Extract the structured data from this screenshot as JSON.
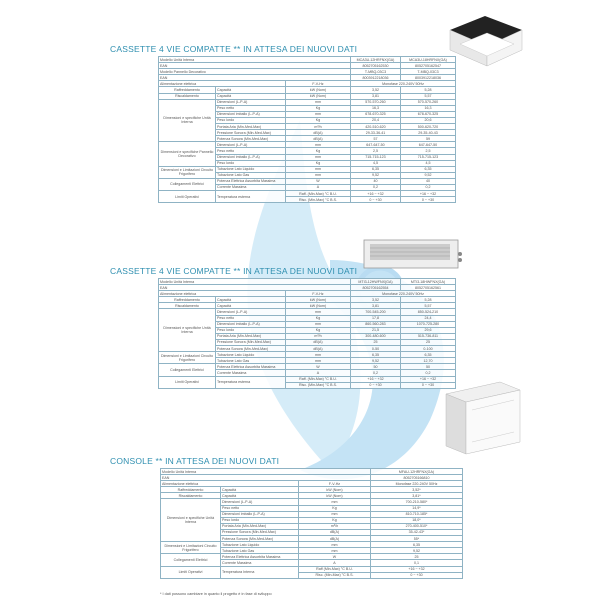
{
  "colors": {
    "title": "#2f8fb0",
    "watermark": "#cfe9f7",
    "border": "#8fb3c4"
  },
  "sections": [
    {
      "title": "CASSETTE 4 VIE COMPATTE   ** IN ATTESA DEI NUOVI DATI",
      "image": "cassette-unit-image",
      "rows": [
        [
          {
            "t": "Modello Unità Interna",
            "cs": 3,
            "l": 1
          },
          {
            "t": "MCA3U-12HRFNX(GA)"
          },
          {
            "t": "MCA3U-18HRFNX(GA)"
          }
        ],
        [
          {
            "t": "EAN",
            "cs": 3,
            "l": 1
          },
          {
            "t": "8052705162530"
          },
          {
            "t": "8052705162547"
          }
        ],
        [
          {
            "t": "Modello Pannello Decorativo",
            "cs": 3,
            "l": 1
          },
          {
            "t": "T-MBQ-03C3"
          },
          {
            "t": "T-MBQ-03C3"
          }
        ],
        [
          {
            "t": "EAN",
            "cs": 3,
            "l": 1
          },
          {
            "t": "8003912218036"
          },
          {
            "t": "8003912218036"
          }
        ],
        [
          {
            "t": "Alimentazione elettrica",
            "cs": 2,
            "l": 1
          },
          {
            "t": "F-V-Hz"
          },
          {
            "t": "Monofase 220-240V 50Hz",
            "cs": 2
          }
        ],
        [
          {
            "t": "Raffreddamento"
          },
          {
            "t": "Capacità",
            "l": 1
          },
          {
            "t": "kW (Nom)"
          },
          {
            "t": "3,52"
          },
          {
            "t": "5,28"
          }
        ],
        [
          {
            "t": "Riscaldamento"
          },
          {
            "t": "Capacità",
            "l": 1
          },
          {
            "t": "kW (Nom)"
          },
          {
            "t": "3,81"
          },
          {
            "t": "5,57"
          }
        ],
        [
          {
            "t": "Dimensioni e specifiche Unità Interna",
            "rs": 8,
            "w": 1
          },
          {
            "t": "Dimensioni (L-P-A)",
            "l": 1
          },
          {
            "t": "mm"
          },
          {
            "t": "570-570-260"
          },
          {
            "t": "570-570-260"
          }
        ],
        [
          {
            "t": "Peso netto",
            "l": 1
          },
          {
            "t": "Kg"
          },
          {
            "t": "16,3"
          },
          {
            "t": "16,3"
          }
        ],
        [
          {
            "t": "Dimensioni imballo (L-P-A)",
            "l": 1
          },
          {
            "t": "mm"
          },
          {
            "t": "678-670-325"
          },
          {
            "t": "678-670-325"
          }
        ],
        [
          {
            "t": "Peso lordo",
            "l": 1
          },
          {
            "t": "Kg"
          },
          {
            "t": "20,4"
          },
          {
            "t": "20,6"
          }
        ],
        [
          {
            "t": "Portata Aria (Min-Med-Max)",
            "l": 1
          },
          {
            "t": "m³/h"
          },
          {
            "t": "420-510-620"
          },
          {
            "t": "500-620-720"
          }
        ],
        [
          {
            "t": "Pressione Sonora (Min-Med-Max)",
            "l": 1,
            "w": 1,
            "rs": 2
          },
          {
            "t": "dB(A)",
            "rs": 2
          },
          {
            "t": "29-33-36-41",
            "rs": 2
          },
          {
            "t": "29-35-40-43",
            "rs": 2
          }
        ],
        [],
        [
          {
            "t": "Potenza Sonora (Min-Med-Max)",
            "l": 1,
            "w": 1
          },
          {
            "t": "dB(A)"
          },
          {
            "t": "57"
          },
          {
            "t": "59"
          }
        ],
        [
          {
            "t": "Dimensioni e specifiche Pannello Decorativo",
            "rs": 4,
            "w": 1
          },
          {
            "t": "Dimensioni (L-P-A)",
            "l": 1
          },
          {
            "t": "mm"
          },
          {
            "t": "647-647-50"
          },
          {
            "t": "647-647-50"
          }
        ],
        [
          {
            "t": "Peso netto",
            "l": 1
          },
          {
            "t": "Kg"
          },
          {
            "t": "2,5"
          },
          {
            "t": "2,5"
          }
        ],
        [
          {
            "t": "Dimensioni imballo (L-P-A)",
            "l": 1
          },
          {
            "t": "mm"
          },
          {
            "t": "715-715-123"
          },
          {
            "t": "715-715-123"
          }
        ],
        [
          {
            "t": "Peso lordo",
            "l": 1
          },
          {
            "t": "Kg"
          },
          {
            "t": "4,5"
          },
          {
            "t": "4,5"
          }
        ],
        [
          {
            "t": "Dimensioni e Limitazioni Circuito Frigorifero",
            "rs": 2,
            "w": 1
          },
          {
            "t": "Tubazione Lato Liquido",
            "l": 1
          },
          {
            "t": "mm"
          },
          {
            "t": "6,35"
          },
          {
            "t": "6,35"
          }
        ],
        [
          {
            "t": "Tubazione Lato Gas",
            "l": 1
          },
          {
            "t": "mm"
          },
          {
            "t": "9,52"
          },
          {
            "t": "9,52"
          }
        ],
        [
          {
            "t": "Collegamenti Elettrici",
            "rs": 2
          },
          {
            "t": "Potenza Elettrica Assorbita Massima",
            "l": 1
          },
          {
            "t": "W"
          },
          {
            "t": "40"
          },
          {
            "t": "40"
          }
        ],
        [
          {
            "t": "Corrente Massima",
            "l": 1
          },
          {
            "t": "A"
          },
          {
            "t": "0,2"
          },
          {
            "t": "0,2"
          }
        ],
        [
          {
            "t": "Limiti Operativi",
            "rs": 2
          },
          {
            "t": "Temperatura esterna",
            "rs": 2,
            "l": 1
          },
          {
            "t": "Raff. (Min-Max) °C B.U."
          },
          {
            "t": "+16 ~ +32"
          },
          {
            "t": "+16 ~ +32"
          }
        ],
        [
          {
            "t": "Risc. (Min-Max) °C B.S."
          },
          {
            "t": "0 ~ +30"
          },
          {
            "t": "0 ~ +30"
          }
        ]
      ]
    },
    {
      "title": "CASSETTE 4 VIE COMPATTE   ** IN ATTESA DEI NUOVI DATI",
      "image": "duct-unit-image",
      "rows": [
        [
          {
            "t": "Modello Unità Interna",
            "cs": 3,
            "l": 1
          },
          {
            "t": "MTI3-12HWFNX(GA)"
          },
          {
            "t": "MTI3-18HWFNX(GA)"
          }
        ],
        [
          {
            "t": "EAN",
            "cs": 3,
            "l": 1
          },
          {
            "t": "8052705162554"
          },
          {
            "t": "8052705162561"
          }
        ],
        [
          {
            "t": "Alimentazione elettrica",
            "cs": 2,
            "l": 1
          },
          {
            "t": "F-V-Hz"
          },
          {
            "t": "Monofase 220-240V 50Hz",
            "cs": 2
          }
        ],
        [
          {
            "t": "Raffreddamento"
          },
          {
            "t": "Capacità",
            "l": 1
          },
          {
            "t": "kW (Nom)"
          },
          {
            "t": "3,52"
          },
          {
            "t": "5,28"
          }
        ],
        [
          {
            "t": "Riscaldamento"
          },
          {
            "t": "Capacità",
            "l": 1
          },
          {
            "t": "kW (Nom)"
          },
          {
            "t": "3,81"
          },
          {
            "t": "5,57"
          }
        ],
        [
          {
            "t": "Dimensioni e specifiche Unità Interna",
            "rs": 9,
            "w": 1
          },
          {
            "t": "Dimensioni (L-P-A)",
            "l": 1
          },
          {
            "t": "mm"
          },
          {
            "t": "700-545-200"
          },
          {
            "t": "850-524-210"
          }
        ],
        [
          {
            "t": "Peso netto",
            "l": 1
          },
          {
            "t": "Kg"
          },
          {
            "t": "17,8"
          },
          {
            "t": "24,4"
          }
        ],
        [
          {
            "t": "Dimensioni imballo (L-P-A)",
            "l": 1
          },
          {
            "t": "mm"
          },
          {
            "t": "860-560-283"
          },
          {
            "t": "1070-725-280"
          }
        ],
        [
          {
            "t": "Peso lordo",
            "l": 1
          },
          {
            "t": "Kg"
          },
          {
            "t": "21,5"
          },
          {
            "t": "29,6"
          }
        ],
        [
          {
            "t": "Portata Aria (Min-Med-Max)",
            "l": 1
          },
          {
            "t": "m³/h"
          },
          {
            "t": "300-480-600"
          },
          {
            "t": "515-736-811"
          }
        ],
        [
          {
            "t": "Pressione Sonora (Min-Med-Max)",
            "l": 1,
            "w": 1,
            "rs": 2
          },
          {
            "t": "dB(A)",
            "rs": 2
          },
          {
            "t": "25",
            "rs": 2
          },
          {
            "t": "25",
            "rs": 2
          }
        ],
        [],
        [
          {
            "t": "Potenza Sonora (Min-Med-Max)",
            "l": 1,
            "w": 1,
            "rs": 2
          },
          {
            "t": "dB(A)",
            "rs": 2
          },
          {
            "t": "0-50",
            "rs": 2
          },
          {
            "t": "0-100",
            "rs": 2
          }
        ],
        [],
        [
          {
            "t": "Dimensioni e Limitazioni Circuito Frigorifero",
            "rs": 2,
            "w": 1
          },
          {
            "t": "Tubazione Lato Liquido",
            "l": 1
          },
          {
            "t": "mm"
          },
          {
            "t": "6,35"
          },
          {
            "t": "6,35"
          }
        ],
        [
          {
            "t": "Tubazione Lato Gas",
            "l": 1
          },
          {
            "t": "mm"
          },
          {
            "t": "9,52"
          },
          {
            "t": "12,70"
          }
        ],
        [
          {
            "t": "Collegamenti Elettrici",
            "rs": 2
          },
          {
            "t": "Potenza Elettrica Assorbita Massima",
            "l": 1
          },
          {
            "t": "W"
          },
          {
            "t": "50"
          },
          {
            "t": "50"
          }
        ],
        [
          {
            "t": "Corrente Massima",
            "l": 1
          },
          {
            "t": "A"
          },
          {
            "t": "0,2"
          },
          {
            "t": "0,2"
          }
        ],
        [
          {
            "t": "Limiti Operativi",
            "rs": 2
          },
          {
            "t": "Temperatura esterna",
            "rs": 2,
            "l": 1
          },
          {
            "t": "Raff. (Min-Max) °C B.U."
          },
          {
            "t": "+16 ~ +32"
          },
          {
            "t": "+16 ~ +32"
          }
        ],
        [
          {
            "t": "Risc. (Min-Max) °C B.S."
          },
          {
            "t": "0 ~ +30"
          },
          {
            "t": "0 ~ +30"
          }
        ]
      ]
    },
    {
      "title": "CONSOLE   ** IN ATTESA DEI NUOVI DATI",
      "image": "console-unit-image",
      "rows": [
        [
          {
            "t": "Modello Unità Interna",
            "cs": 3,
            "l": 1
          },
          {
            "t": "MFAU-12HRFNX(GA)"
          }
        ],
        [
          {
            "t": "EAN",
            "cs": 3,
            "l": 1
          },
          {
            "t": "8052705166810"
          }
        ],
        [
          {
            "t": "Alimentazione elettrica",
            "cs": 2,
            "l": 1
          },
          {
            "t": "F-V-Hz"
          },
          {
            "t": "Monofase 220-240V 50Hz"
          }
        ],
        [
          {
            "t": "Raffreddamento"
          },
          {
            "t": "Capacità",
            "l": 1
          },
          {
            "t": "kW (Nom)"
          },
          {
            "t": "3,52*"
          }
        ],
        [
          {
            "t": "Riscaldamento"
          },
          {
            "t": "Capacità",
            "l": 1
          },
          {
            "t": "kW (Nom)"
          },
          {
            "t": "3,81*"
          }
        ],
        [
          {
            "t": "Dimensioni e specifiche Unità Interna",
            "rs": 9,
            "w": 1
          },
          {
            "t": "Dimensioni (L-P-A)",
            "l": 1
          },
          {
            "t": "mm"
          },
          {
            "t": "700-210-580*"
          }
        ],
        [
          {
            "t": "Peso netto",
            "l": 1
          },
          {
            "t": "Kg"
          },
          {
            "t": "14,9*"
          }
        ],
        [
          {
            "t": "Dimensioni imballo (L-P-A)",
            "l": 1
          },
          {
            "t": "mm"
          },
          {
            "t": "810-710-185*"
          }
        ],
        [
          {
            "t": "Peso lordo",
            "l": 1
          },
          {
            "t": "Kg"
          },
          {
            "t": "18,0*"
          }
        ],
        [
          {
            "t": "Portata Aria (Min-Med-Max)",
            "l": 1
          },
          {
            "t": "m³/h"
          },
          {
            "t": "270-400-510*"
          }
        ],
        [
          {
            "t": "Pressione Sonora (Min-Med-Max)",
            "l": 1,
            "w": 1,
            "rs": 2
          },
          {
            "t": "dB(A)",
            "rs": 2
          },
          {
            "t": "35-42-43*",
            "rs": 2
          }
        ],
        [],
        [
          {
            "t": "Potenza Sonora (Min-Med-Max)",
            "l": 1,
            "w": 1,
            "rs": 2
          },
          {
            "t": "dB(A)",
            "rs": 2
          },
          {
            "t": "55*",
            "rs": 2
          }
        ],
        [],
        [
          {
            "t": "Dimensioni e Limitazioni Circuito Frigorifero",
            "rs": 2,
            "w": 1
          },
          {
            "t": "Tubazione Lato Liquido",
            "l": 1
          },
          {
            "t": "mm"
          },
          {
            "t": "6,35"
          }
        ],
        [
          {
            "t": "Tubazione Lato Gas",
            "l": 1
          },
          {
            "t": "mm"
          },
          {
            "t": "9,52"
          }
        ],
        [
          {
            "t": "Collegamenti Elettrici",
            "rs": 2
          },
          {
            "t": "Potenza Elettrica Assorbita Massima",
            "l": 1
          },
          {
            "t": "W"
          },
          {
            "t": "25"
          }
        ],
        [
          {
            "t": "Corrente Massima",
            "l": 1
          },
          {
            "t": "A"
          },
          {
            "t": "0,1"
          }
        ],
        [
          {
            "t": "Limiti Operativi",
            "rs": 2
          },
          {
            "t": "Temperatura Interna",
            "rs": 2,
            "l": 1
          },
          {
            "t": "Raff (Min-Max) °C B.U."
          },
          {
            "t": "+16 ~ +32"
          }
        ],
        [
          {
            "t": "Risc. (Min-Max) °C B.S."
          },
          {
            "t": "0 ~ +30"
          }
        ]
      ]
    }
  ],
  "footnote": "* I dati possono cambiare in quanto il progetto è in fase di sviluppo"
}
